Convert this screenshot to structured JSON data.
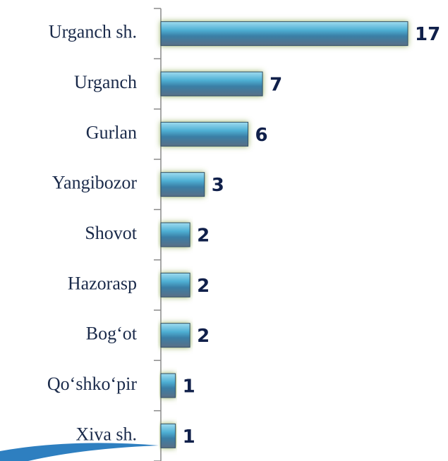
{
  "chart_data": {
    "type": "barh",
    "categories": [
      "Urganch sh.",
      "Urganch",
      "Gurlan",
      "Yangibozor",
      "Shovot",
      "Hazorasp",
      "Bog‘ot",
      "Qo‘shko‘pir",
      "Xiva sh."
    ],
    "values": [
      17,
      7,
      6,
      3,
      2,
      2,
      2,
      1,
      1
    ],
    "color": "#3a8fb5",
    "xlim": [
      0,
      17
    ]
  }
}
